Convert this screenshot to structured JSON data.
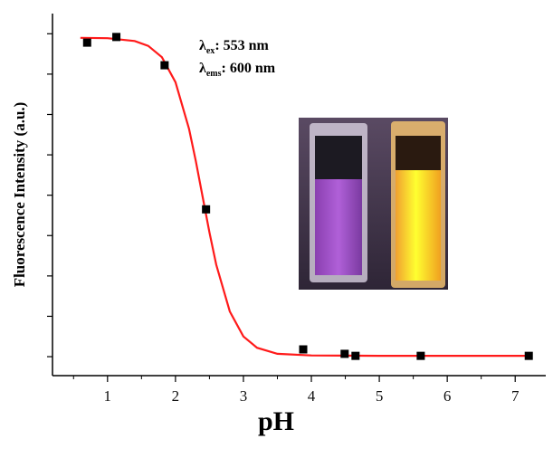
{
  "chart_data": {
    "type": "scatter",
    "x_label": "pH",
    "y_label": "Fluorescence Intensity (a.u.)",
    "annotations": [
      {
        "symbol": "λ",
        "sub": "ex",
        "text": ": 553 nm"
      },
      {
        "symbol": "λ",
        "sub": "ems",
        "text": ": 600 nm"
      }
    ],
    "series": [
      {
        "type": "scatter",
        "color": "#000000",
        "x": [
          0.7,
          1.13,
          1.84,
          2.45,
          3.88,
          4.49,
          4.65,
          5.61,
          7.2
        ],
        "values": [
          7.78,
          7.92,
          7.22,
          3.65,
          0.18,
          0.07,
          0.02,
          0.02,
          0.02
        ]
      },
      {
        "type": "line",
        "color": "#ff1a1a",
        "x": [
          0.6,
          1.0,
          1.4,
          1.6,
          1.8,
          2.0,
          2.2,
          2.3,
          2.4,
          2.5,
          2.6,
          2.8,
          3.0,
          3.2,
          3.5,
          4.0,
          5.0,
          6.0,
          7.2
        ],
        "values": [
          7.9,
          7.89,
          7.82,
          7.7,
          7.42,
          6.8,
          5.64,
          4.84,
          3.96,
          3.08,
          2.28,
          1.12,
          0.5,
          0.22,
          0.07,
          0.03,
          0.02,
          0.02,
          0.02
        ]
      }
    ],
    "xlim": [
      0.19,
      7.45
    ],
    "xticks": [
      1,
      2,
      3,
      4,
      5,
      6,
      7
    ],
    "xminorticks": [
      0.5,
      1.5,
      2.5,
      3.5,
      4.5,
      5.5,
      6.5
    ],
    "ylim": [
      -0.47,
      8.5
    ],
    "yticks": [
      0,
      1,
      2,
      3,
      4,
      5,
      6,
      7,
      8
    ]
  }
}
